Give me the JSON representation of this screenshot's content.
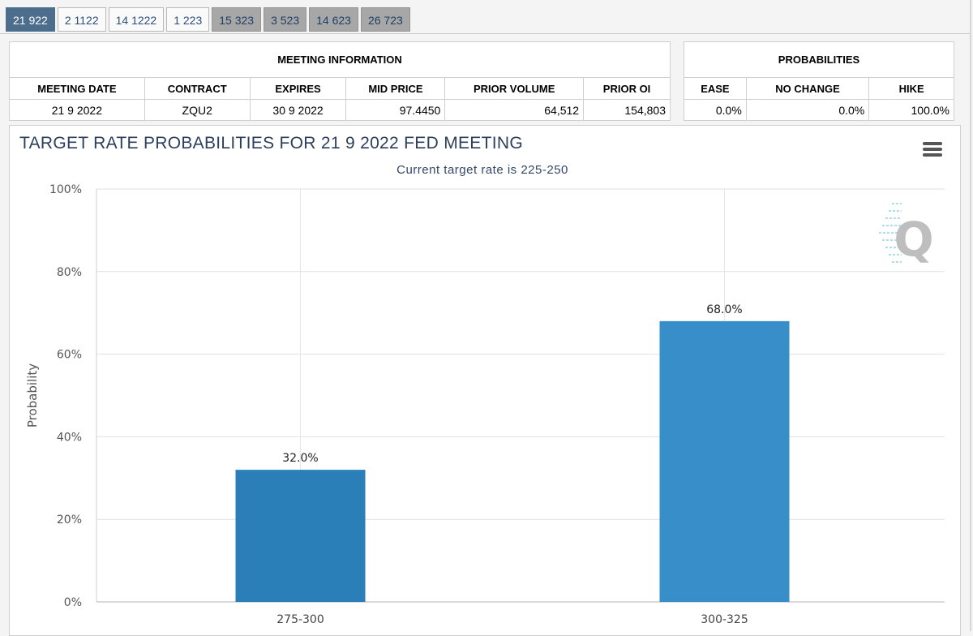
{
  "tabs": [
    {
      "label": "21 922",
      "state": "active"
    },
    {
      "label": "2 1122",
      "state": "normal"
    },
    {
      "label": "14 1222",
      "state": "normal"
    },
    {
      "label": "1 223",
      "state": "normal"
    },
    {
      "label": "15 323",
      "state": "dim"
    },
    {
      "label": "3 523",
      "state": "dim"
    },
    {
      "label": "14 623",
      "state": "dim"
    },
    {
      "label": "26 723",
      "state": "dim"
    }
  ],
  "meeting_info": {
    "header": "MEETING INFORMATION",
    "columns": [
      "MEETING DATE",
      "CONTRACT",
      "EXPIRES",
      "MID PRICE",
      "PRIOR VOLUME",
      "PRIOR OI"
    ],
    "row": [
      "21 9 2022",
      "ZQU2",
      "30 9 2022",
      "97.4450",
      "64,512",
      "154,803"
    ]
  },
  "probabilities": {
    "header": "PROBABILITIES",
    "columns": [
      "EASE",
      "NO CHANGE",
      "HIKE"
    ],
    "row": [
      "0.0%",
      "0.0%",
      "100.0%"
    ]
  },
  "chart_data": {
    "type": "bar",
    "title": "TARGET RATE PROBABILITIES FOR 21 9 2022 FED MEETING",
    "subtitle": "Current target rate is 225-250",
    "xlabel": "",
    "ylabel": "Probability",
    "categories": [
      "275-300",
      "300-325"
    ],
    "values": [
      32.0,
      68.0
    ],
    "data_labels": [
      "32.0%",
      "68.0%"
    ],
    "ylim": [
      0,
      100
    ],
    "yticks": [
      0,
      20,
      40,
      60,
      80,
      100
    ],
    "ytick_labels": [
      "0%",
      "20%",
      "40%",
      "60%",
      "80%",
      "100%"
    ],
    "grid": true,
    "bar_colors": [
      "#2a7fb8",
      "#378ec8"
    ],
    "watermark_icon": "q-logo-icon"
  }
}
